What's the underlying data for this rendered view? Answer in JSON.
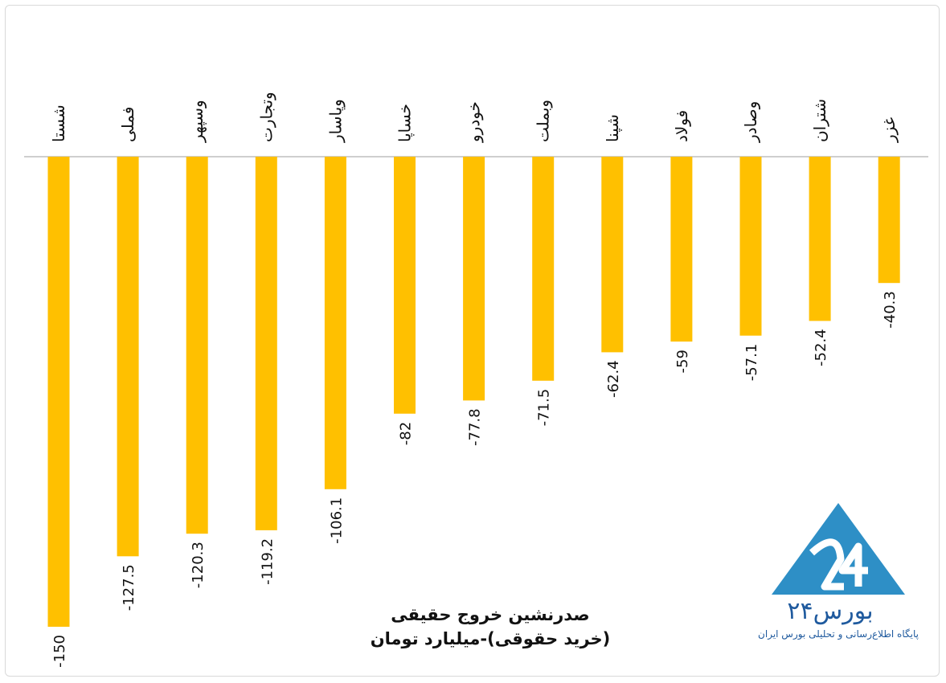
{
  "title": {
    "line1": "صدرنشین خروج حقیقی",
    "line2": "(خرید حقوقی)-میلیارد تومان"
  },
  "logo": {
    "name": "بورس۲۴",
    "tagline": "پایگاه اطلاع‌رسانی و تحلیلی بورس ایران"
  },
  "colors": {
    "bar": "#FFC000",
    "logo_blue": "#2E8FC6",
    "logo_dark": "#1f5a9e"
  },
  "chart_data": {
    "type": "bar",
    "categories": [
      "شستا",
      "فملی",
      "وسپهر",
      "وتجارت",
      "وپاسار",
      "خساپا",
      "خودرو",
      "وبملت",
      "شپنا",
      "فولاد",
      "وصادر",
      "شتران",
      "غزر"
    ],
    "values": [
      -150,
      -127.5,
      -120.3,
      -119.2,
      -106.1,
      -82,
      -77.8,
      -71.5,
      -62.4,
      -59,
      -57.1,
      -52.4,
      -40.3
    ],
    "ylim": [
      -150,
      0
    ],
    "data_labels": true,
    "grid": false
  }
}
